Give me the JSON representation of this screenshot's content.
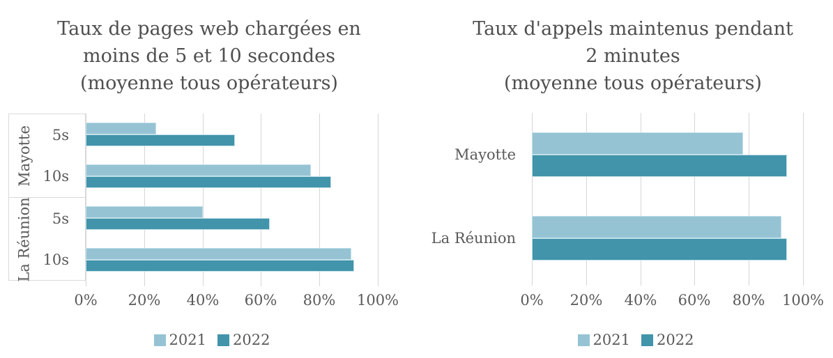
{
  "page": {
    "background": "#ffffff"
  },
  "colors": {
    "series": {
      "2021": "#95C3D4",
      "2022": "#4194AA"
    },
    "gridline": "#d6d6d6",
    "axis_text": "#595959",
    "title_text": "#4f4f4f"
  },
  "chart_data": [
    {
      "type": "bar",
      "orientation": "horizontal",
      "title": "Taux de pages web chargées en moins de 5 et 10 secondes (moyenne tous opérateurs)",
      "title_lines": [
        "Taux de pages web chargées en",
        "moins de 5 et 10 secondes",
        "(moyenne tous opérateurs)"
      ],
      "category_groups": [
        {
          "group": "Mayotte",
          "items": [
            "5s",
            "10s"
          ]
        },
        {
          "group": "La Réunion",
          "items": [
            "5s",
            "10s"
          ]
        }
      ],
      "categories": [
        "Mayotte 5s",
        "Mayotte 10s",
        "La Réunion 5s",
        "La Réunion 10s"
      ],
      "series": [
        {
          "name": "2021",
          "values": [
            24,
            77,
            40,
            91
          ]
        },
        {
          "name": "2022",
          "values": [
            51,
            84,
            63,
            92
          ]
        }
      ],
      "xlabel": "",
      "ylabel": "",
      "xlim": [
        0,
        100
      ],
      "x_tick_labels": [
        "0%",
        "20%",
        "40%",
        "60%",
        "80%",
        "100%"
      ],
      "grid": true,
      "legend_position": "bottom"
    },
    {
      "type": "bar",
      "orientation": "horizontal",
      "title": "Taux d'appels maintenus pendant 2 minutes (moyenne tous opérateurs)",
      "title_lines": [
        "Taux d'appels maintenus pendant",
        "2 minutes",
        "(moyenne tous opérateurs)"
      ],
      "categories": [
        "Mayotte",
        "La Réunion"
      ],
      "series": [
        {
          "name": "2021",
          "values": [
            78,
            92
          ]
        },
        {
          "name": "2022",
          "values": [
            94,
            94
          ]
        }
      ],
      "xlabel": "",
      "ylabel": "",
      "xlim": [
        0,
        100
      ],
      "x_tick_labels": [
        "0%",
        "20%",
        "40%",
        "60%",
        "80%",
        "100%"
      ],
      "grid": true,
      "legend_position": "bottom"
    }
  ]
}
